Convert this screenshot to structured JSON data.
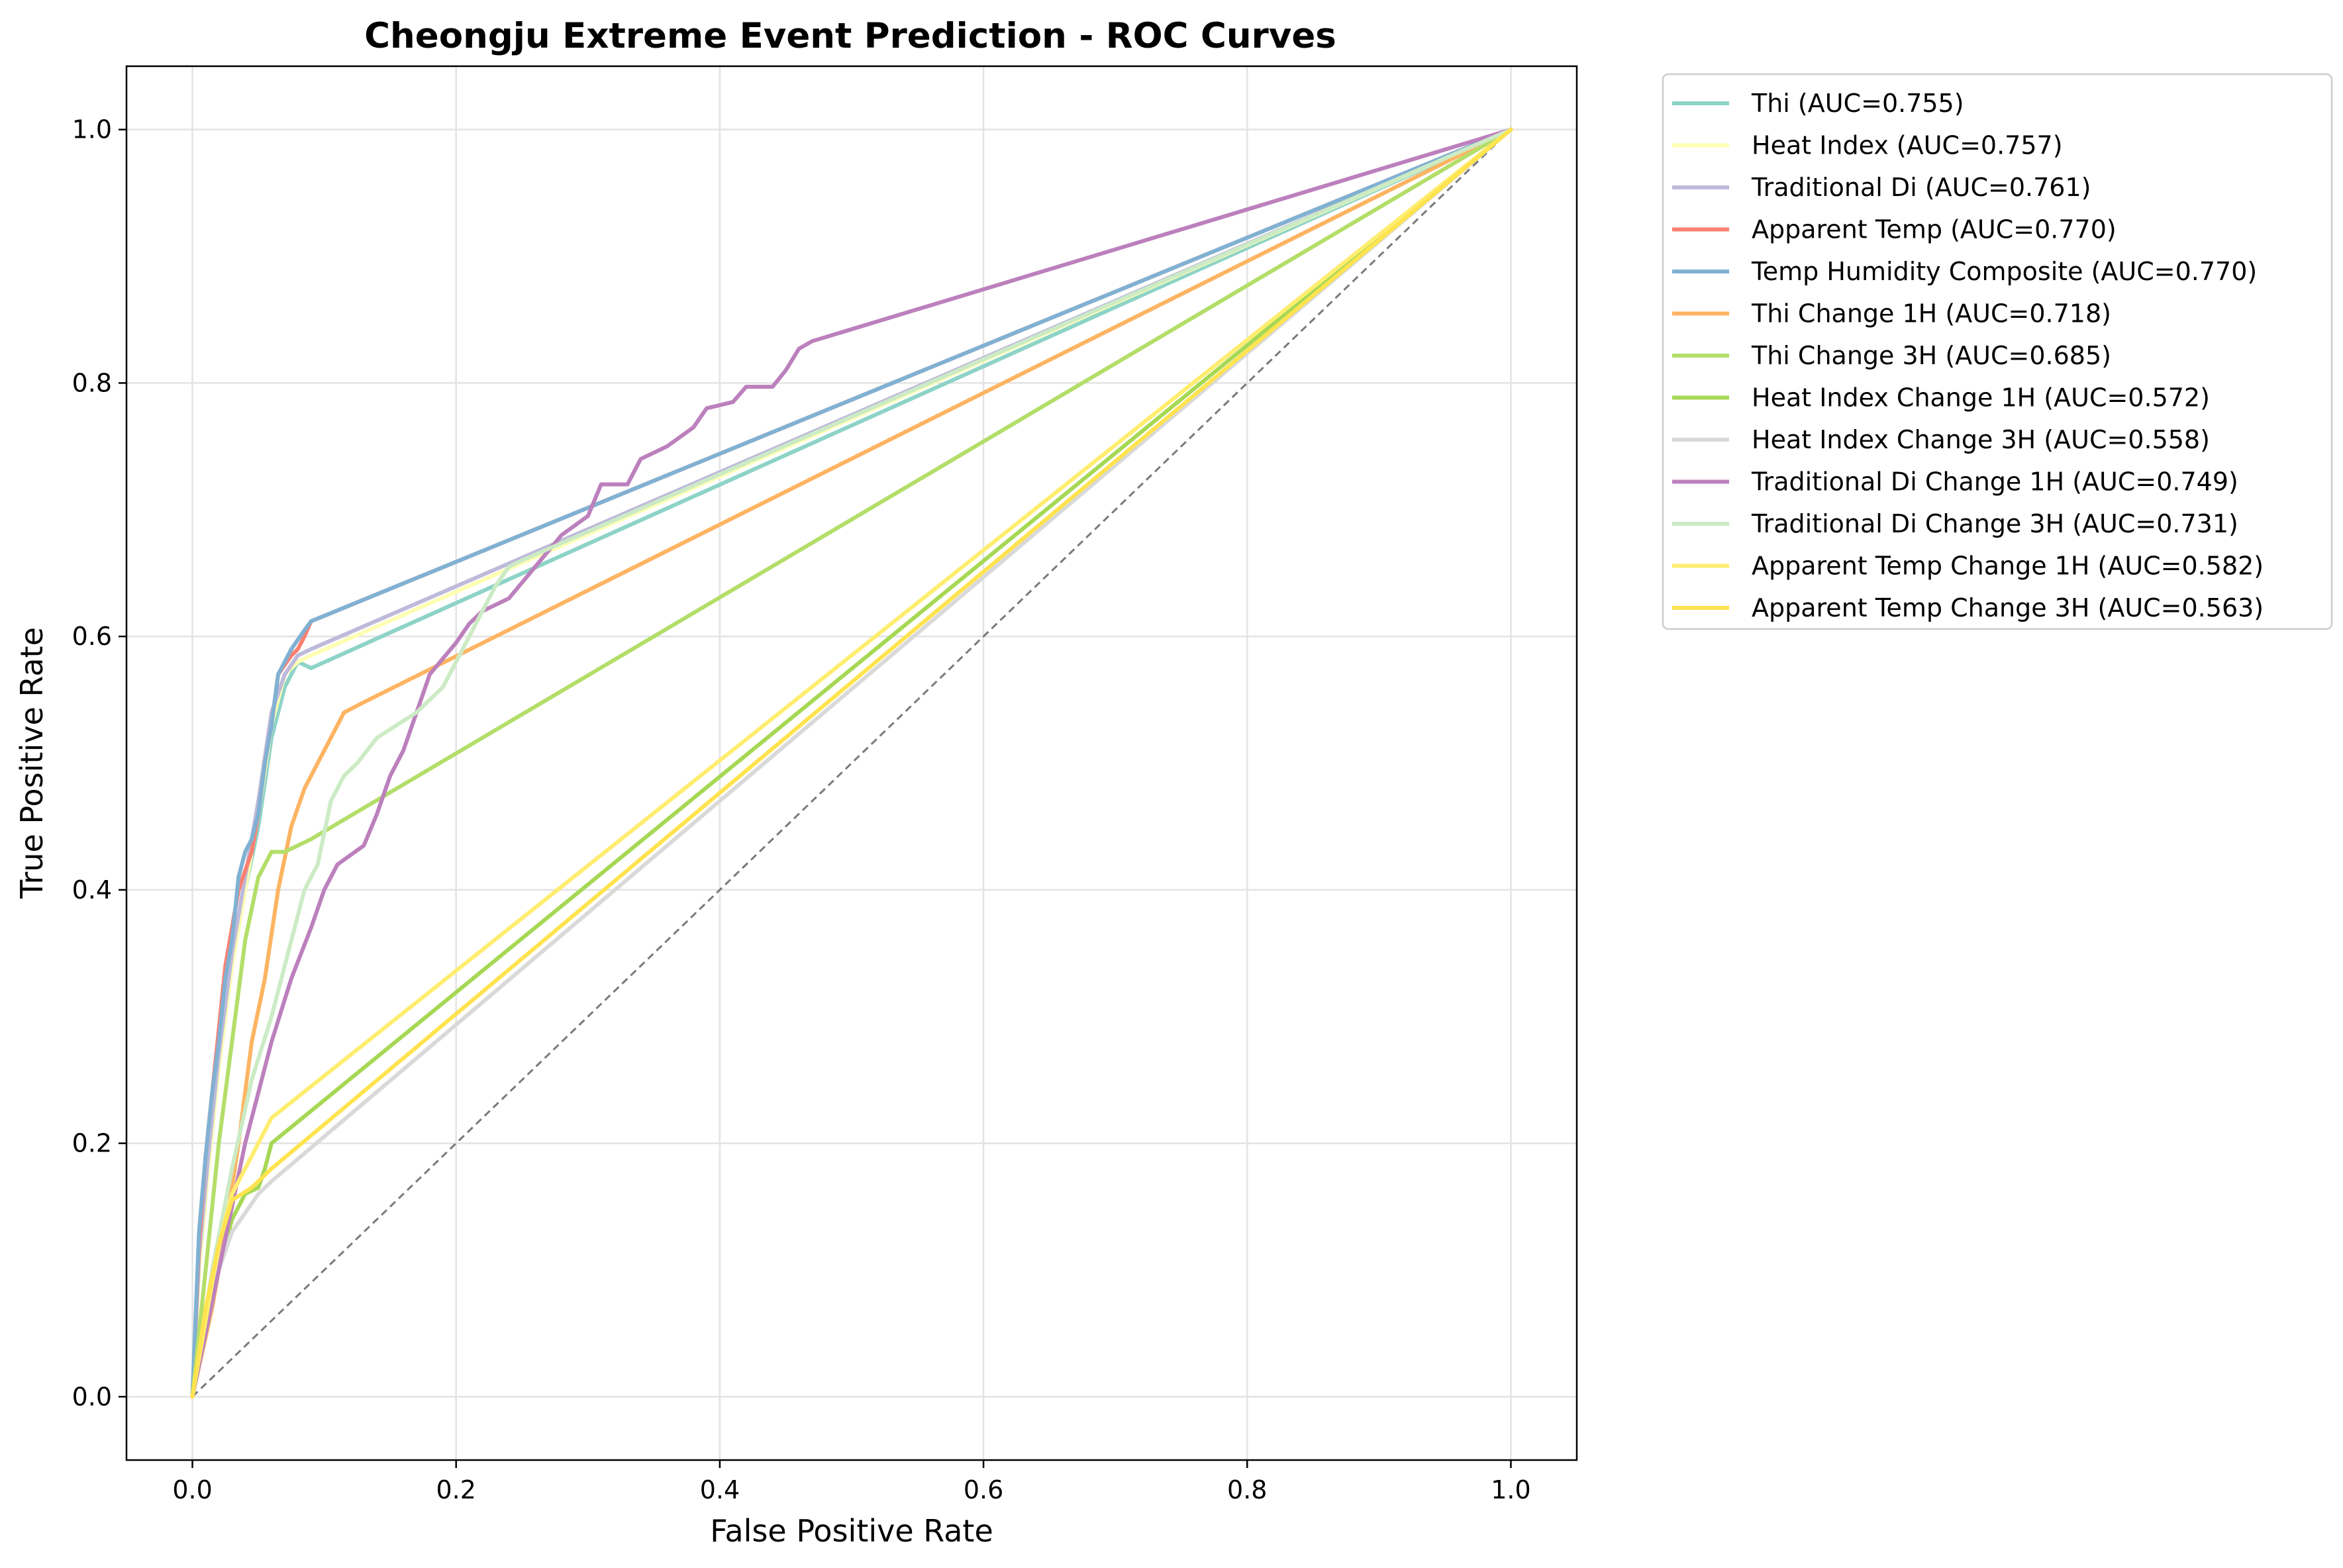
{
  "chart_data": {
    "type": "line",
    "title": "Cheongju Extreme Event Prediction - ROC Curves",
    "xlabel": "False Positive Rate",
    "ylabel": "True Positive Rate",
    "xlim": [
      -0.05,
      1.05
    ],
    "ylim": [
      -0.05,
      1.05
    ],
    "xticks": [
      "0.0",
      "0.2",
      "0.4",
      "0.6",
      "0.8",
      "1.0"
    ],
    "yticks": [
      "0.0",
      "0.2",
      "0.4",
      "0.6",
      "0.8",
      "1.0"
    ],
    "grid": true,
    "legend_position": "outside-upper-right",
    "diagonal": {
      "color": "#7a7a7a",
      "dash": "dashed",
      "points": [
        [
          0,
          0
        ],
        [
          1,
          1
        ]
      ]
    },
    "series": [
      {
        "name": "Thi (AUC=0.755)",
        "color": "#8dd3c7",
        "points": [
          [
            0,
            0
          ],
          [
            0.005,
            0.1
          ],
          [
            0.012,
            0.18
          ],
          [
            0.02,
            0.26
          ],
          [
            0.03,
            0.34
          ],
          [
            0.04,
            0.4
          ],
          [
            0.05,
            0.45
          ],
          [
            0.06,
            0.52
          ],
          [
            0.07,
            0.56
          ],
          [
            0.08,
            0.58
          ],
          [
            0.09,
            0.575
          ],
          [
            1,
            1
          ]
        ]
      },
      {
        "name": "Heat Index (AUC=0.757)",
        "color": "#ffffb3",
        "points": [
          [
            0,
            0
          ],
          [
            0.005,
            0.1
          ],
          [
            0.012,
            0.18
          ],
          [
            0.02,
            0.26
          ],
          [
            0.03,
            0.34
          ],
          [
            0.04,
            0.4
          ],
          [
            0.05,
            0.46
          ],
          [
            0.06,
            0.53
          ],
          [
            0.07,
            0.57
          ],
          [
            0.08,
            0.58
          ],
          [
            0.09,
            0.585
          ],
          [
            1,
            1
          ]
        ]
      },
      {
        "name": "Traditional Di (AUC=0.761)",
        "color": "#bebada",
        "points": [
          [
            0,
            0
          ],
          [
            0.005,
            0.11
          ],
          [
            0.012,
            0.19
          ],
          [
            0.02,
            0.27
          ],
          [
            0.03,
            0.35
          ],
          [
            0.04,
            0.41
          ],
          [
            0.05,
            0.47
          ],
          [
            0.06,
            0.54
          ],
          [
            0.07,
            0.57
          ],
          [
            0.08,
            0.585
          ],
          [
            0.09,
            0.59
          ],
          [
            1,
            1
          ]
        ]
      },
      {
        "name": "Apparent Temp (AUC=0.770)",
        "color": "#fb8072",
        "points": [
          [
            0,
            0
          ],
          [
            0.005,
            0.12
          ],
          [
            0.01,
            0.19
          ],
          [
            0.015,
            0.24
          ],
          [
            0.02,
            0.29
          ],
          [
            0.025,
            0.34
          ],
          [
            0.03,
            0.37
          ],
          [
            0.035,
            0.4
          ],
          [
            0.045,
            0.43
          ],
          [
            0.05,
            0.46
          ],
          [
            0.055,
            0.5
          ],
          [
            0.06,
            0.53
          ],
          [
            0.065,
            0.57
          ],
          [
            0.075,
            0.585
          ],
          [
            0.08,
            0.59
          ],
          [
            0.085,
            0.6
          ],
          [
            0.09,
            0.612
          ],
          [
            1,
            1
          ]
        ]
      },
      {
        "name": "Temp Humidity Composite (AUC=0.770)",
        "color": "#80b1d3",
        "points": [
          [
            0,
            0
          ],
          [
            0.005,
            0.13
          ],
          [
            0.01,
            0.19
          ],
          [
            0.015,
            0.24
          ],
          [
            0.02,
            0.28
          ],
          [
            0.025,
            0.33
          ],
          [
            0.03,
            0.36
          ],
          [
            0.035,
            0.41
          ],
          [
            0.04,
            0.43
          ],
          [
            0.045,
            0.44
          ],
          [
            0.05,
            0.46
          ],
          [
            0.055,
            0.5
          ],
          [
            0.06,
            0.53
          ],
          [
            0.065,
            0.57
          ],
          [
            0.075,
            0.59
          ],
          [
            0.085,
            0.605
          ],
          [
            0.09,
            0.612
          ],
          [
            1,
            1
          ]
        ]
      },
      {
        "name": "Thi Change 1H (AUC=0.718)",
        "color": "#fdb462",
        "points": [
          [
            0,
            0
          ],
          [
            0.015,
            0.07
          ],
          [
            0.025,
            0.13
          ],
          [
            0.035,
            0.2
          ],
          [
            0.045,
            0.28
          ],
          [
            0.055,
            0.33
          ],
          [
            0.065,
            0.4
          ],
          [
            0.075,
            0.45
          ],
          [
            0.085,
            0.48
          ],
          [
            0.095,
            0.5
          ],
          [
            0.105,
            0.52
          ],
          [
            0.115,
            0.54
          ],
          [
            0.13,
            0.548
          ],
          [
            1,
            1
          ]
        ]
      },
      {
        "name": "Thi Change 3H (AUC=0.685)",
        "color": "#b3de69",
        "points": [
          [
            0,
            0
          ],
          [
            0.01,
            0.1
          ],
          [
            0.02,
            0.2
          ],
          [
            0.03,
            0.28
          ],
          [
            0.04,
            0.36
          ],
          [
            0.05,
            0.41
          ],
          [
            0.06,
            0.43
          ],
          [
            0.07,
            0.43
          ],
          [
            0.09,
            0.44
          ],
          [
            1,
            1
          ]
        ]
      },
      {
        "name": "Heat Index Change 1H (AUC=0.572)",
        "color": "#a6d854",
        "points": [
          [
            0,
            0
          ],
          [
            0.01,
            0.05
          ],
          [
            0.02,
            0.1
          ],
          [
            0.03,
            0.14
          ],
          [
            0.04,
            0.16
          ],
          [
            0.05,
            0.165
          ],
          [
            0.055,
            0.18
          ],
          [
            0.06,
            0.2
          ],
          [
            1,
            1
          ]
        ]
      },
      {
        "name": "Heat Index Change 3H (AUC=0.558)",
        "color": "#d9d9d9",
        "points": [
          [
            0,
            0
          ],
          [
            0.01,
            0.05
          ],
          [
            0.02,
            0.1
          ],
          [
            0.03,
            0.13
          ],
          [
            0.04,
            0.145
          ],
          [
            0.05,
            0.16
          ],
          [
            0.06,
            0.17
          ],
          [
            1,
            1
          ]
        ]
      },
      {
        "name": "Traditional Di Change 1H (AUC=0.749)",
        "color": "#bc80bd",
        "points": [
          [
            0,
            0
          ],
          [
            0.02,
            0.1
          ],
          [
            0.04,
            0.2
          ],
          [
            0.06,
            0.28
          ],
          [
            0.075,
            0.33
          ],
          [
            0.09,
            0.37
          ],
          [
            0.1,
            0.4
          ],
          [
            0.11,
            0.42
          ],
          [
            0.13,
            0.435
          ],
          [
            0.14,
            0.46
          ],
          [
            0.15,
            0.49
          ],
          [
            0.16,
            0.51
          ],
          [
            0.17,
            0.54
          ],
          [
            0.18,
            0.57
          ],
          [
            0.2,
            0.595
          ],
          [
            0.21,
            0.61
          ],
          [
            0.22,
            0.62
          ],
          [
            0.24,
            0.63
          ],
          [
            0.26,
            0.655
          ],
          [
            0.28,
            0.68
          ],
          [
            0.3,
            0.695
          ],
          [
            0.31,
            0.72
          ],
          [
            0.33,
            0.72
          ],
          [
            0.34,
            0.74
          ],
          [
            0.36,
            0.75
          ],
          [
            0.38,
            0.765
          ],
          [
            0.39,
            0.78
          ],
          [
            0.41,
            0.785
          ],
          [
            0.42,
            0.797
          ],
          [
            0.44,
            0.797
          ],
          [
            0.45,
            0.81
          ],
          [
            0.46,
            0.827
          ],
          [
            0.47,
            0.833
          ],
          [
            1,
            1
          ]
        ]
      },
      {
        "name": "Traditional Di Change 3H (AUC=0.731)",
        "color": "#ccebc5",
        "points": [
          [
            0,
            0
          ],
          [
            0.015,
            0.1
          ],
          [
            0.03,
            0.18
          ],
          [
            0.045,
            0.25
          ],
          [
            0.06,
            0.3
          ],
          [
            0.075,
            0.36
          ],
          [
            0.085,
            0.4
          ],
          [
            0.095,
            0.42
          ],
          [
            0.105,
            0.47
          ],
          [
            0.115,
            0.49
          ],
          [
            0.125,
            0.5
          ],
          [
            0.14,
            0.52
          ],
          [
            0.155,
            0.53
          ],
          [
            0.17,
            0.54
          ],
          [
            0.18,
            0.55
          ],
          [
            0.19,
            0.56
          ],
          [
            0.2,
            0.58
          ],
          [
            0.21,
            0.6
          ],
          [
            0.22,
            0.62
          ],
          [
            0.23,
            0.64
          ],
          [
            0.24,
            0.655
          ],
          [
            0.25,
            0.66
          ],
          [
            1,
            1
          ]
        ]
      },
      {
        "name": "Apparent Temp Change 1H (AUC=0.582)",
        "color": "#ffed6f",
        "points": [
          [
            0,
            0
          ],
          [
            0.01,
            0.06
          ],
          [
            0.02,
            0.12
          ],
          [
            0.03,
            0.16
          ],
          [
            0.04,
            0.18
          ],
          [
            0.05,
            0.2
          ],
          [
            0.06,
            0.22
          ],
          [
            1,
            1
          ]
        ]
      },
      {
        "name": "Apparent Temp Change 3H (AUC=0.563)",
        "color": "#ffe34f",
        "points": [
          [
            0,
            0
          ],
          [
            0.01,
            0.07
          ],
          [
            0.02,
            0.12
          ],
          [
            0.03,
            0.155
          ],
          [
            0.045,
            0.165
          ],
          [
            0.06,
            0.18
          ],
          [
            1,
            1
          ]
        ]
      }
    ]
  }
}
